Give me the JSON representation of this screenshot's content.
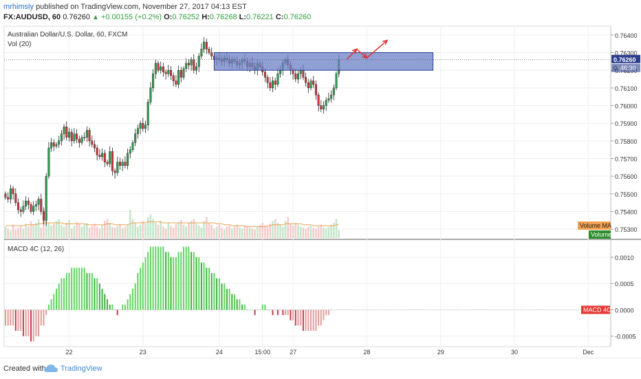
{
  "header": {
    "user": "mrhimsly",
    "published_text": "published on TradingView.com, November 27, 2017 04:13 EST",
    "symbol": "FX:AUDUSD, 60",
    "price": "0.76260",
    "change_icon": "up-triangle-icon",
    "change": "+0.00155 (+0.2%)",
    "o_label": "O:",
    "o_value": "0.76252",
    "h_label": "H:",
    "h_value": "0.76268",
    "l_label": "L:",
    "l_value": "0.76221",
    "c_label": "C:",
    "c_value": "0.76260"
  },
  "footer": {
    "created_with": "Created with",
    "logo_icon": "tradingview-cloud-icon",
    "brand": "TradingView"
  },
  "colors": {
    "up": "#2e9e4e",
    "down": "#d0363b",
    "macd_pos": "#7be07b",
    "macd_neg": "#e07070",
    "box": "#6b7fc6",
    "arrow": "#e03030",
    "volume_ma": "#f0a050",
    "volume_badge": "#2c8f2c",
    "macd_badge": "#e53935"
  },
  "chart_data": [
    {
      "type": "candlestick",
      "title": "Australian Dollar/U.S. Dollar, 60, FXCM",
      "volume_label": "Vol (20)",
      "ylim": [
        0.7525,
        0.7645
      ],
      "y_ticks": [
        "0.76400",
        "0.76300",
        "0.76200",
        "0.76100",
        "0.76000",
        "0.75900",
        "0.75800",
        "0.75700",
        "0.75600",
        "0.75500",
        "0.75400",
        "0.75300"
      ],
      "x_ticks": [
        "22",
        "23",
        "24",
        "15:00",
        "27",
        "28",
        "29",
        "30",
        "Dec"
      ],
      "price_label": "0.76260",
      "timer_label": "46:30",
      "volume_ma_label": "Volume MA",
      "volume_badge_label": "Volume",
      "close_path": [
        0.7548,
        0.7547,
        0.7553,
        0.755,
        0.7545,
        0.7541,
        0.754,
        0.7543,
        0.7546,
        0.7544,
        0.754,
        0.7543,
        0.7544,
        0.7547,
        0.754,
        0.7535,
        0.756,
        0.7576,
        0.7579,
        0.7577,
        0.7578,
        0.758,
        0.7584,
        0.7588,
        0.7582,
        0.7585,
        0.758,
        0.7584,
        0.7581,
        0.7579,
        0.7582,
        0.7582,
        0.7586,
        0.758,
        0.7578,
        0.7576,
        0.7572,
        0.7571,
        0.7573,
        0.7568,
        0.7567,
        0.7574,
        0.7563,
        0.7562,
        0.7568,
        0.7566,
        0.7568,
        0.7566,
        0.7573,
        0.7575,
        0.7579,
        0.7584,
        0.7587,
        0.759,
        0.7587,
        0.7589,
        0.7602,
        0.761,
        0.7618,
        0.7624,
        0.762,
        0.7622,
        0.7619,
        0.7618,
        0.762,
        0.7617,
        0.7614,
        0.7612,
        0.762,
        0.7616,
        0.7621,
        0.7624,
        0.7623,
        0.7626,
        0.762,
        0.7622,
        0.7628,
        0.7632,
        0.7636,
        0.7632,
        0.763,
        0.7628,
        0.7626,
        0.7627,
        0.7626,
        0.7625,
        0.7627,
        0.7626,
        0.7624,
        0.7626,
        0.7625,
        0.7623,
        0.7624,
        0.7626,
        0.7625,
        0.7622,
        0.7624,
        0.7622,
        0.762,
        0.7624,
        0.7622,
        0.7619,
        0.7616,
        0.7613,
        0.761,
        0.7614,
        0.7612,
        0.7618,
        0.762,
        0.7624,
        0.7626,
        0.7623,
        0.762,
        0.7618,
        0.7615,
        0.7618,
        0.762,
        0.7616,
        0.7613,
        0.761,
        0.7614,
        0.7612,
        0.7606,
        0.76,
        0.7598,
        0.76,
        0.7603,
        0.7604,
        0.7606,
        0.761,
        0.7618,
        0.7626
      ],
      "box": {
        "x_from_bar": 82,
        "x_to_bar": 168,
        "price_from": 0.762,
        "price_to": 0.763
      },
      "projection_path": [
        [
          134,
          0.7626
        ],
        [
          138,
          0.7632
        ],
        [
          142,
          0.7627
        ],
        [
          150,
          0.7637
        ]
      ],
      "volume": [
        12,
        10,
        8,
        14,
        9,
        11,
        13,
        10,
        15,
        12,
        18,
        14,
        16,
        20,
        11,
        30,
        22,
        16,
        13,
        15,
        18,
        20,
        14,
        12,
        16,
        19,
        10,
        13,
        17,
        15,
        12,
        14,
        16,
        11,
        13,
        15,
        12,
        10,
        14,
        18,
        20,
        16,
        12,
        11,
        13,
        15,
        10,
        12,
        14,
        30,
        20,
        16,
        12,
        14,
        18,
        15,
        22,
        25,
        20,
        16,
        14,
        18,
        12,
        10,
        16,
        13,
        11,
        15,
        17,
        19,
        14,
        12,
        16,
        18,
        20,
        15,
        13,
        11,
        18,
        22,
        16,
        14,
        10,
        12,
        14,
        11,
        9,
        12,
        13,
        10,
        12,
        14,
        11,
        10,
        13,
        12,
        11,
        10,
        9,
        12,
        14,
        16,
        13,
        12,
        15,
        18,
        20,
        16,
        14,
        12,
        18,
        22,
        15,
        13,
        16,
        14,
        12,
        11,
        10,
        12,
        13,
        11,
        10,
        12,
        14,
        11,
        10,
        12,
        14,
        16,
        20,
        8
      ],
      "volume_ma": [
        13,
        13,
        13,
        13,
        13,
        13,
        13,
        13,
        14,
        14,
        14,
        14,
        14,
        15,
        15,
        16,
        16,
        16,
        16,
        16,
        16,
        16,
        16,
        15,
        15,
        15,
        15,
        15,
        15,
        15,
        15,
        15,
        14,
        14,
        14,
        14,
        14,
        14,
        14,
        14,
        15,
        15,
        15,
        14,
        14,
        14,
        14,
        14,
        14,
        15,
        16,
        16,
        16,
        16,
        16,
        16,
        17,
        17,
        17,
        17,
        17,
        17,
        16,
        16,
        16,
        16,
        16,
        16,
        16,
        16,
        16,
        16,
        16,
        16,
        16,
        16,
        16,
        16,
        16,
        16,
        16,
        16,
        16,
        15,
        15,
        15,
        14,
        14,
        14,
        13,
        13,
        13,
        13,
        13,
        13,
        12,
        12,
        12,
        12,
        12,
        12,
        12,
        12,
        13,
        13,
        14,
        14,
        14,
        14,
        14,
        15,
        15,
        15,
        15,
        15,
        15,
        15,
        14,
        14,
        14,
        14,
        13,
        13,
        13,
        13,
        13,
        13,
        13,
        13,
        13,
        14,
        14
      ]
    },
    {
      "type": "bar",
      "title": "MACD 4C (12, 26)",
      "ylim": [
        -0.0007,
        0.0013
      ],
      "y_ticks": [
        "0.0010",
        "0.0005",
        "0.0000",
        "-0.0005"
      ],
      "badge_label": "MACD 4C",
      "values": [
        -0.0003,
        -0.0003,
        -0.0003,
        -0.0003,
        -0.0004,
        -0.0004,
        -0.0004,
        -0.0005,
        -0.0005,
        -0.0005,
        -0.0006,
        -0.0006,
        -0.0005,
        -0.0005,
        -0.0003,
        -0.0003,
        -0.0001,
        0.0001,
        0.0002,
        0.0003,
        0.0004,
        0.0005,
        0.0006,
        0.0006,
        0.0007,
        0.0007,
        0.0008,
        0.0008,
        0.0008,
        0.0008,
        0.0008,
        0.0008,
        0.0007,
        0.0007,
        0.0007,
        0.0006,
        0.0006,
        0.0005,
        0.0004,
        0.0003,
        0.0002,
        0.0001,
        0.0001,
        0.0,
        -0.0001,
        0.0,
        0.0001,
        0.0001,
        0.0002,
        0.0003,
        0.0004,
        0.0005,
        0.0007,
        0.0008,
        0.0009,
        0.001,
        0.0011,
        0.0012,
        0.0012,
        0.0012,
        0.0012,
        0.0012,
        0.0012,
        0.0011,
        0.0011,
        0.001,
        0.001,
        0.001,
        0.0011,
        0.0011,
        0.0012,
        0.0012,
        0.0012,
        0.0011,
        0.0011,
        0.001,
        0.001,
        0.0009,
        0.0009,
        0.0008,
        0.0008,
        0.0007,
        0.0007,
        0.0006,
        0.0006,
        0.0005,
        0.0005,
        0.0004,
        0.0004,
        0.0003,
        0.0003,
        0.0002,
        0.0002,
        0.0001,
        0.0001,
        0.0,
        0.0,
        0.0,
        -0.0001,
        0.0,
        0.0,
        0.0001,
        0.0001,
        0.0,
        0.0,
        -0.0001,
        0.0,
        -0.0001,
        0.0,
        -0.0001,
        -0.0001,
        -0.0001,
        -0.0002,
        -0.0002,
        -0.0003,
        -0.0003,
        -0.0003,
        -0.0004,
        -0.0004,
        -0.0004,
        -0.0004,
        -0.0004,
        -0.0004,
        -0.0003,
        -0.0003,
        -0.0002,
        -0.0001,
        -0.0001,
        0.0
      ]
    }
  ]
}
